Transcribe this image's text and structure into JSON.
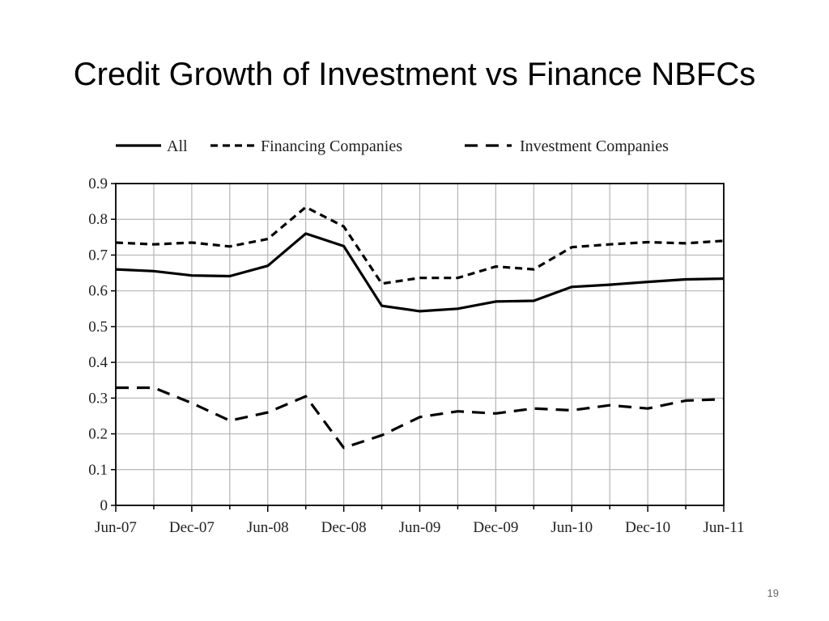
{
  "slide": {
    "title": "Credit Growth of Investment vs Finance NBFCs",
    "page_number": "19"
  },
  "chart_data": {
    "type": "line",
    "title": "",
    "xlabel": "",
    "ylabel": "",
    "ylim": [
      0,
      0.9
    ],
    "yticks": [
      "0",
      "0.1",
      "0.2",
      "0.3",
      "0.4",
      "0.5",
      "0.6",
      "0.7",
      "0.8",
      "0.9"
    ],
    "x": [
      "Jun-07",
      "Sep-07",
      "Dec-07",
      "Mar-08",
      "Jun-08",
      "Sep-08",
      "Dec-08",
      "Mar-09",
      "Jun-09",
      "Sep-09",
      "Dec-09",
      "Mar-10",
      "Jun-10",
      "Sep-10",
      "Dec-10",
      "Mar-11",
      "Jun-11"
    ],
    "xtick_labels": [
      "Jun-07",
      "Dec-07",
      "Jun-08",
      "Dec-08",
      "Jun-09",
      "Dec-09",
      "Jun-10",
      "Dec-10",
      "Jun-11"
    ],
    "grid": true,
    "legend_position": "top",
    "series": [
      {
        "name": "All",
        "style": "solid",
        "values": [
          0.66,
          0.655,
          0.643,
          0.641,
          0.67,
          0.76,
          0.725,
          0.558,
          0.543,
          0.55,
          0.57,
          0.572,
          0.611,
          0.617,
          0.625,
          0.632,
          0.634
        ]
      },
      {
        "name": "Financing Companies",
        "style": "short-dash",
        "values": [
          0.735,
          0.73,
          0.735,
          0.724,
          0.745,
          0.834,
          0.78,
          0.62,
          0.636,
          0.636,
          0.668,
          0.66,
          0.722,
          0.73,
          0.736,
          0.733,
          0.74
        ]
      },
      {
        "name": "Investment Companies",
        "style": "long-dash",
        "values": [
          0.329,
          0.329,
          0.286,
          0.237,
          0.26,
          0.305,
          0.161,
          0.196,
          0.247,
          0.263,
          0.257,
          0.271,
          0.266,
          0.28,
          0.271,
          0.293,
          0.297
        ]
      }
    ],
    "colors": {
      "line": "#000000",
      "grid": "#b5b5b5",
      "axis": "#000000"
    }
  }
}
